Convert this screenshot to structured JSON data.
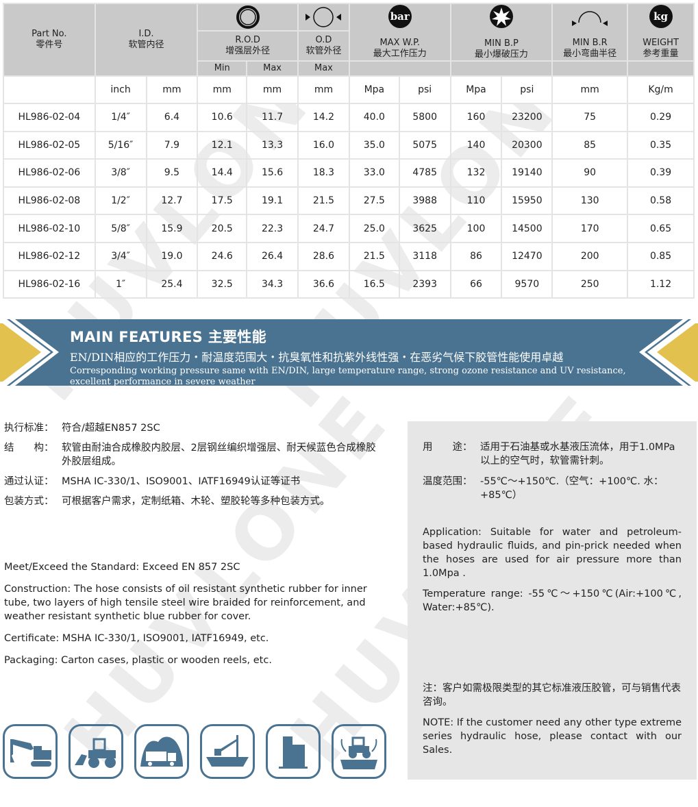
{
  "table": {
    "headers": {
      "part_no": "Part No.",
      "part_no_cn": "零件号",
      "id": "I.D.",
      "id_cn": "软管内径",
      "rod": "R.O.D",
      "rod_cn": "增强层外径",
      "rod_min": "Min",
      "rod_max": "Max",
      "od": "O.D",
      "od_cn": "软管外径",
      "od_max": "Max",
      "wp": "MAX W.P.",
      "wp_cn": "最大工作压力",
      "wp_icon": "bar",
      "bp": "MIN B.P",
      "bp_cn": "最小爆破压力",
      "br": "MIN B.R",
      "br_cn": "最小弯曲半径",
      "weight": "WEIGHT",
      "weight_cn": "参考重量",
      "weight_icon": "kg"
    },
    "units": [
      "",
      "inch",
      "mm",
      "mm",
      "mm",
      "mm",
      "Mpa",
      "psi",
      "Mpa",
      "psi",
      "mm",
      "Kg/m"
    ],
    "rows": [
      [
        "HL986-02-04",
        "1/4″",
        "6.4",
        "10.6",
        "11.7",
        "14.2",
        "40.0",
        "5800",
        "160",
        "23200",
        "75",
        "0.29"
      ],
      [
        "HL986-02-05",
        "5/16″",
        "7.9",
        "12.1",
        "13.3",
        "16.0",
        "35.0",
        "5075",
        "140",
        "20300",
        "85",
        "0.35"
      ],
      [
        "HL986-02-06",
        "3/8″",
        "9.5",
        "14.4",
        "15.6",
        "18.3",
        "33.0",
        "4785",
        "132",
        "19140",
        "90",
        "0.39"
      ],
      [
        "HL986-02-08",
        "1/2″",
        "12.7",
        "17.5",
        "19.1",
        "21.5",
        "27.5",
        "3988",
        "110",
        "15950",
        "130",
        "0.58"
      ],
      [
        "HL986-02-10",
        "5/8″",
        "15.9",
        "20.5",
        "22.3",
        "24.7",
        "25.0",
        "3625",
        "100",
        "14500",
        "170",
        "0.65"
      ],
      [
        "HL986-02-12",
        "3/4″",
        "19.0",
        "24.6",
        "26.4",
        "28.6",
        "21.5",
        "3118",
        "86",
        "12470",
        "200",
        "0.85"
      ],
      [
        "HL986-02-16",
        "1″",
        "25.4",
        "32.5",
        "34.3",
        "36.6",
        "16.5",
        "2393",
        "66",
        "9570",
        "250",
        "1.12"
      ]
    ]
  },
  "banner": {
    "title": "MAIN FEATURES 主要性能",
    "cn": "EN/DIN相应的工作压力・耐温度范围大・抗臭氧性和抗紫外线性强・在恶劣气候下胶管性能使用卓越",
    "en": "Corresponding working pressure same with EN/DIN, large temperature range, strong ozone resistance and UV resistance, excellent performance in severe weather",
    "color": "#4a7391",
    "accent": "#e2c14f"
  },
  "left_cn": [
    {
      "label": "执行标准：",
      "text": "符合/超越EN857 2SC"
    },
    {
      "label": "结　　构：",
      "text": "软管由耐油合成橡胶内胶层、2层钢丝编织增强层、耐天候蓝色合成橡胶外胶层组成。"
    },
    {
      "label": "通过认证：",
      "text": "MSHA IC-330/1、ISO9001、IATF16949认证等证书"
    },
    {
      "label": "包装方式：",
      "text": "可根据客户需求，定制纸箱、木轮、塑胶轮等多种包装方式。"
    }
  ],
  "left_en": [
    "Meet/Exceed the Standard: Exceed EN 857 2SC",
    "Construction: The hose consists of oil resistant synthetic rubber for inner tube, two layers of high tensile steel wire braided for reinforcement, and weather resistant synthetic blue rubber for cover.",
    "Certificate: MSHA IC-330/1, ISO9001, IATF16949, etc.",
    "Packaging: Carton cases, plastic or wooden reels, etc."
  ],
  "panel": {
    "use_label": "用　　途：",
    "use_text": "适用于石油基或水基液压流体，用于1.0MPa以上的空气时，软管需针刺。",
    "temp_label": "温度范围：",
    "temp_text": "-55℃～+150℃.（空气：+100℃. 水：+85℃）",
    "application": "Application: Suitable for water and petroleum-based hydraulic fluids, and pin-prick needed when the hoses are used for air pressure more than 1.0Mpa .",
    "temperature": "Temperature range: -55℃～+150℃(Air:+100℃, Water:+85℃).",
    "note_cn": "注：客户如需极限类型的其它标准液压胶管，可与销售代表咨询。",
    "note_en": "NOTE: If the customer need any other type extreme series hydraulic hose, please contact with our Sales."
  },
  "applications": [
    "excavator-icon",
    "wheel-loader-icon",
    "mining-truck-icon",
    "ship-crane-icon",
    "building-icon",
    "tractor-agriculture-icon"
  ],
  "watermark": "HUVLONE"
}
